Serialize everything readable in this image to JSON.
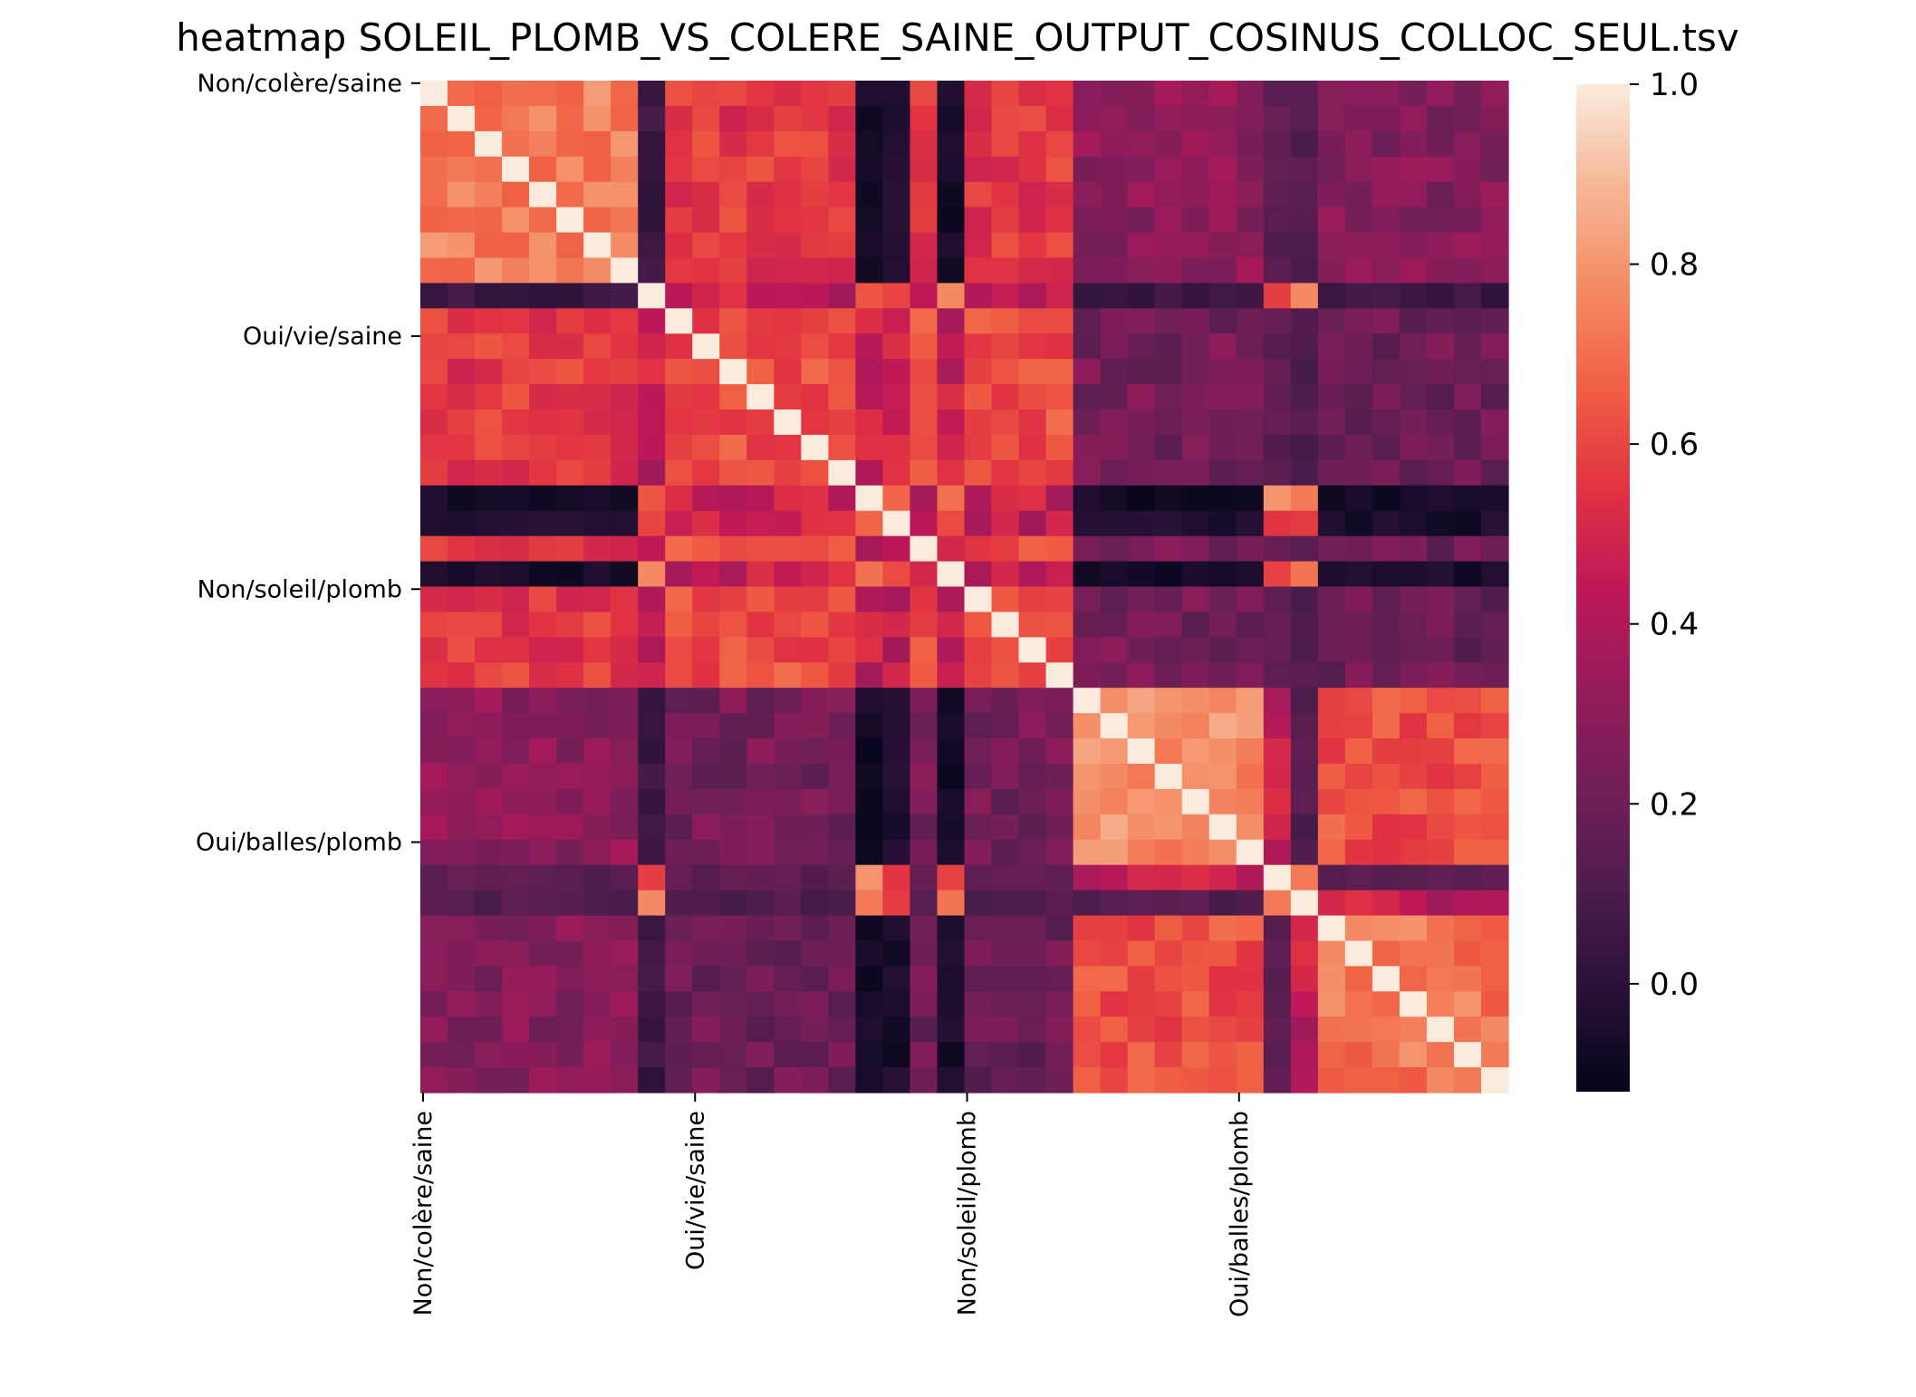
{
  "chart_data": {
    "type": "heatmap",
    "title": "heatmap SOLEIL_PLOMB_VS_COLERE_SAINE_OUTPUT_COSINUS_COLLOC_SEUL.tsv",
    "colormap": "rocket",
    "grid": false,
    "n": 40,
    "tick_labels": [
      "Non/colère/saine",
      "Oui/vie/saine",
      "Non/soleil/plomb",
      "Oui/balles/plomb"
    ],
    "tick_positions": [
      0,
      10,
      20,
      30
    ],
    "groups": [
      {
        "label": "Non/colère/saine",
        "start": 0,
        "size": 8
      },
      {
        "label": "Oui/vie/saine",
        "start": 8,
        "size": 16
      },
      {
        "label": "Non/soleil/plomb",
        "start": 24,
        "size": 8
      },
      {
        "label": "Oui/balles/plomb",
        "start": 32,
        "size": 8
      }
    ],
    "block_means": [
      [
        0.74,
        0.56,
        0.3,
        0.27
      ],
      [
        0.56,
        0.62,
        0.22,
        0.2
      ],
      [
        0.3,
        0.22,
        0.78,
        0.62
      ],
      [
        0.27,
        0.2,
        0.62,
        0.72
      ]
    ],
    "outlier_rows": [
      {
        "index": 8,
        "value": 0.05
      },
      {
        "index": 16,
        "value": -0.07
      },
      {
        "index": 17,
        "value": -0.05
      },
      {
        "index": 19,
        "value": -0.06
      },
      {
        "index": 31,
        "value": 0.15
      },
      {
        "index": 32,
        "value": 0.12
      }
    ],
    "vmin": -0.12,
    "vmax": 1.0,
    "colorbar": {
      "ticks": [
        0.0,
        0.2,
        0.4,
        0.6,
        0.8,
        1.0
      ],
      "tick_labels": [
        "0.0",
        "0.2",
        "0.4",
        "0.6",
        "0.8",
        "1.0"
      ],
      "side": "right"
    }
  }
}
